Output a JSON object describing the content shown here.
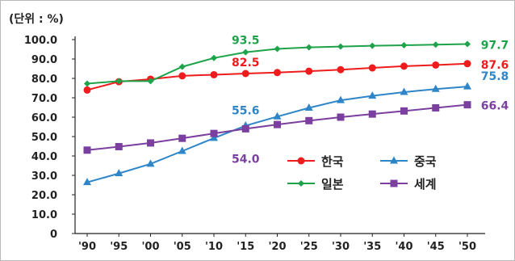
{
  "unit_label": "(단위 : %)",
  "colors": {
    "korea": "#ee1c1c",
    "china": "#2e86c8",
    "japan": "#1fa34a",
    "world": "#7b3fa0",
    "axis": "#222222"
  },
  "chart_data": {
    "type": "line",
    "title": "",
    "xlabel": "",
    "ylabel": "",
    "categories": [
      "'90",
      "'95",
      "'00",
      "'05",
      "'10",
      "'15",
      "'20",
      "'25",
      "'30",
      "'35",
      "'40",
      "'45",
      "'50"
    ],
    "ylim": [
      0,
      100
    ],
    "yticks": [
      "0",
      "10.0",
      "20.0",
      "30.0",
      "40.0",
      "50.0",
      "60.0",
      "70.0",
      "80.0",
      "90.0",
      "100.0"
    ],
    "grid": false,
    "legend_placement": "center-right",
    "series": [
      {
        "name": "한국",
        "key": "korea",
        "marker": "circle",
        "values": [
          74.0,
          78.3,
          79.6,
          81.3,
          81.9,
          82.5,
          83.0,
          83.7,
          84.5,
          85.4,
          86.3,
          86.9,
          87.6
        ]
      },
      {
        "name": "중국",
        "key": "china",
        "marker": "triangle",
        "values": [
          26.4,
          31.0,
          35.9,
          42.5,
          49.2,
          55.6,
          60.3,
          64.8,
          68.7,
          71.0,
          72.9,
          74.5,
          75.8
        ]
      },
      {
        "name": "일본",
        "key": "japan",
        "marker": "diamond",
        "values": [
          77.3,
          78.6,
          78.6,
          86.0,
          90.5,
          93.5,
          95.2,
          96.0,
          96.4,
          96.8,
          97.1,
          97.4,
          97.7
        ]
      },
      {
        "name": "세계",
        "key": "world",
        "marker": "square",
        "values": [
          43.0,
          44.8,
          46.7,
          49.1,
          51.6,
          54.0,
          56.2,
          58.2,
          60.0,
          61.6,
          63.2,
          64.8,
          66.4
        ]
      }
    ],
    "data_labels": [
      {
        "series": "japan",
        "index": 5,
        "text": "93.5"
      },
      {
        "series": "korea",
        "index": 5,
        "text": "82.5"
      },
      {
        "series": "china",
        "index": 5,
        "text": "55.6"
      },
      {
        "series": "world",
        "index": 5,
        "text": "54.0"
      },
      {
        "series": "japan",
        "index": 12,
        "text": "97.7"
      },
      {
        "series": "korea",
        "index": 12,
        "text": "87.6"
      },
      {
        "series": "china",
        "index": 12,
        "text": "75.8"
      },
      {
        "series": "world",
        "index": 12,
        "text": "66.4"
      }
    ]
  }
}
